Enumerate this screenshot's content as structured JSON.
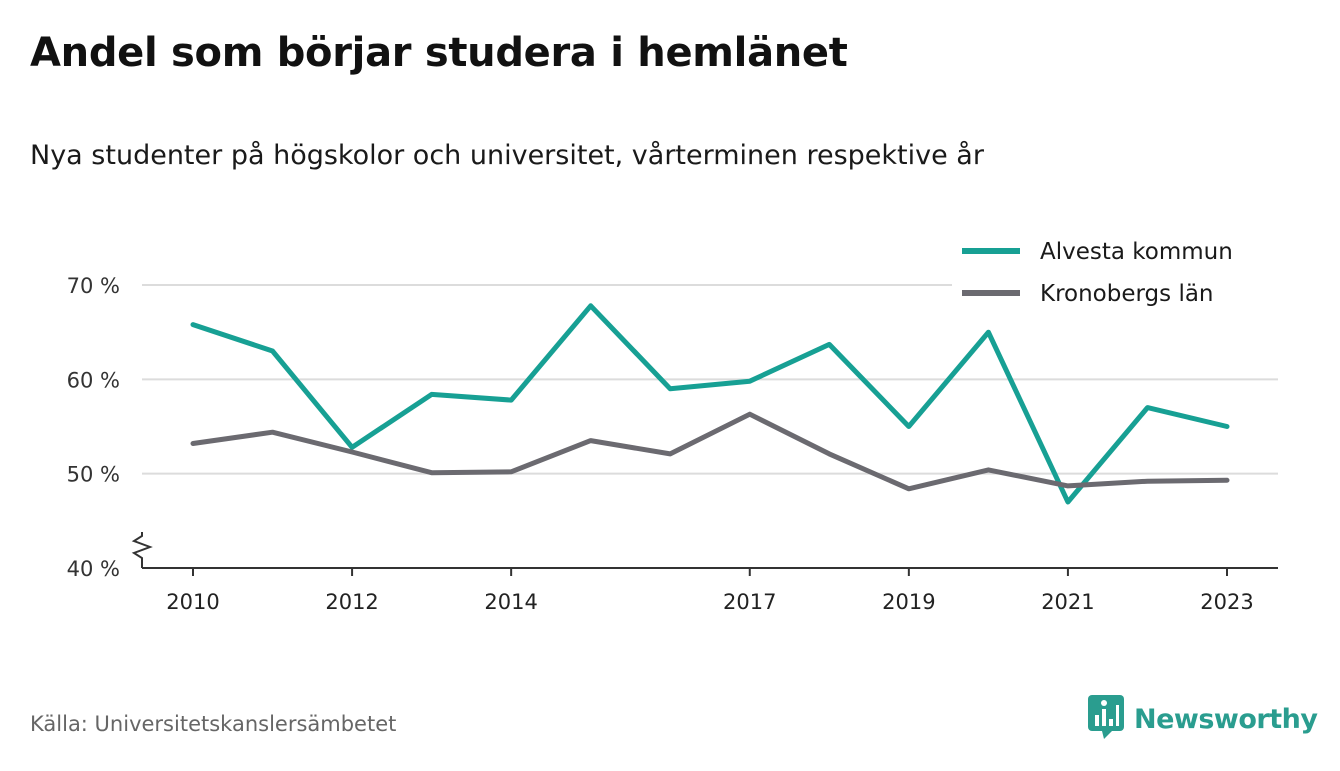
{
  "header": {
    "title": "Andel som börjar studera i hemlänet",
    "subtitle": "Nya studenter på högskolor och universitet, vårterminen respektive år"
  },
  "footer": {
    "source": "Källa: Universitetskanslersämbetet",
    "brand": "Newsworthy"
  },
  "colors": {
    "series_1": "#17a094",
    "series_2": "#6b6a70",
    "grid": "#dcdcdc",
    "axis": "#333333",
    "brand": "#2a9d8f"
  },
  "icons": {
    "brand_logo": "chart-bubble-icon",
    "axis_break": "zigzag-break-icon"
  },
  "chart_data": {
    "type": "line",
    "x": [
      2010,
      2011,
      2012,
      2013,
      2014,
      2015,
      2016,
      2017,
      2018,
      2019,
      2020,
      2021,
      2022,
      2023
    ],
    "x_tick_labels": [
      "2010",
      "2012",
      "2014",
      "2017",
      "2019",
      "2021",
      "2023"
    ],
    "y_tick_labels": [
      "40 %",
      "50 %",
      "60 %",
      "70 %"
    ],
    "y_ticks": [
      40,
      50,
      60,
      70
    ],
    "ylim": [
      40,
      70
    ],
    "grid": true,
    "axis_break": true,
    "legend_position": "top-right",
    "series": [
      {
        "name": "Alvesta kommun",
        "color": "#17a094",
        "values": [
          65.8,
          63.0,
          52.8,
          58.4,
          57.8,
          67.8,
          59.0,
          59.8,
          63.7,
          55.0,
          65.0,
          47.0,
          57.0,
          55.0
        ]
      },
      {
        "name": "Kronobergs län",
        "color": "#6b6a70",
        "values": [
          53.2,
          54.4,
          52.3,
          50.1,
          50.2,
          53.5,
          52.1,
          56.3,
          52.1,
          48.4,
          50.4,
          48.7,
          49.2,
          49.3
        ]
      }
    ]
  }
}
